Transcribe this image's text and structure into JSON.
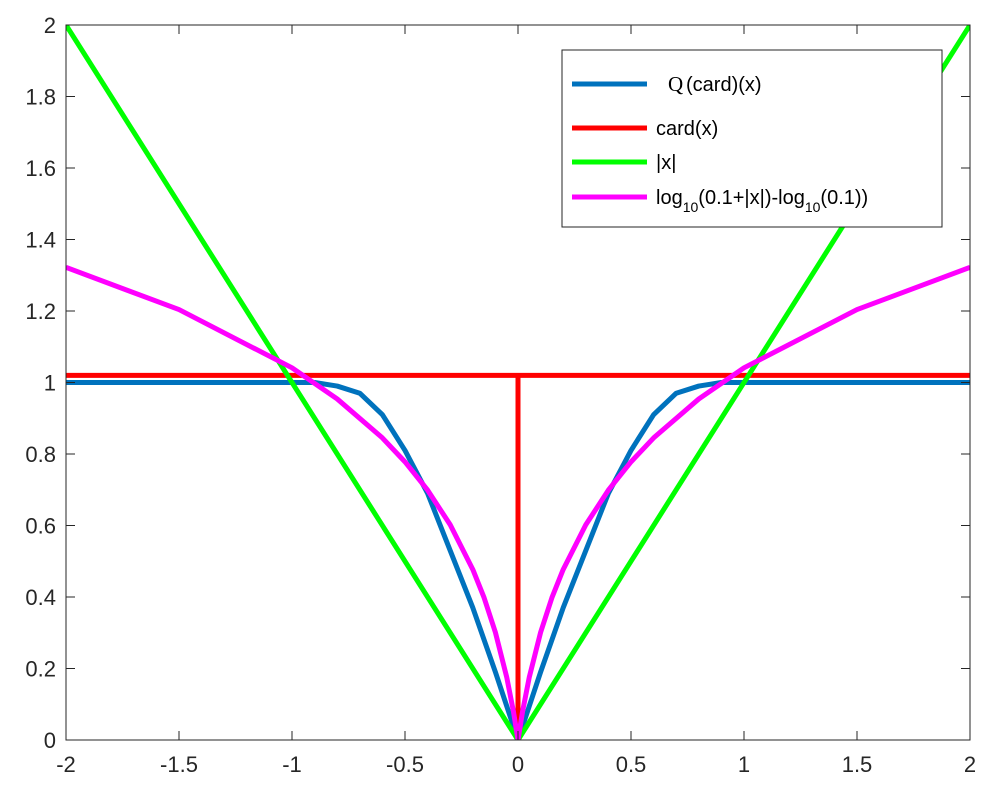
{
  "chart_data": {
    "type": "line",
    "title": "",
    "xlabel": "",
    "ylabel": "",
    "xlim": [
      -2,
      2
    ],
    "ylim": [
      0,
      2
    ],
    "xticks": [
      -2,
      -1.5,
      -1,
      -0.5,
      0,
      0.5,
      1,
      1.5,
      2
    ],
    "xtick_labels": [
      "-2",
      "-1.5",
      "-1",
      "-0.5",
      "0",
      "0.5",
      "1",
      "1.5",
      "2"
    ],
    "yticks": [
      0,
      0.2,
      0.4,
      0.6,
      0.8,
      1,
      1.2,
      1.4,
      1.6,
      1.8,
      2
    ],
    "ytick_labels": [
      "0",
      "0.2",
      "0.4",
      "0.6",
      "0.8",
      "1",
      "1.2",
      "1.4",
      "1.6",
      "1.8",
      "2"
    ],
    "grid": false,
    "legend_position": "top-right",
    "series": [
      {
        "name": "Q(card)(x)",
        "color": "#0072BD",
        "x": [
          -2,
          -1.5,
          -1,
          -0.9,
          -0.8,
          -0.7,
          -0.6,
          -0.5,
          -0.4,
          -0.3,
          -0.2,
          -0.1,
          0,
          0.1,
          0.2,
          0.3,
          0.4,
          0.5,
          0.6,
          0.7,
          0.8,
          0.9,
          1,
          1.5,
          2
        ],
        "y": [
          1,
          1,
          1,
          1,
          0.99,
          0.97,
          0.91,
          0.81,
          0.69,
          0.53,
          0.37,
          0.19,
          0,
          0.19,
          0.37,
          0.53,
          0.69,
          0.81,
          0.91,
          0.97,
          0.99,
          1,
          1,
          1,
          1
        ]
      },
      {
        "name": "card(x)",
        "color": "#FF0000",
        "x": [
          -2,
          0,
          0,
          0,
          2
        ],
        "y": [
          1.02,
          1.02,
          0,
          1.02,
          1.02
        ]
      },
      {
        "name": "|x|",
        "color": "#00FF00",
        "x": [
          -2,
          0,
          2
        ],
        "y": [
          2,
          0,
          2
        ]
      },
      {
        "name": "log10(0.1+|x|)-log10(0.1))",
        "color": "#FF00FF",
        "x": [
          -2,
          -1.5,
          -1,
          -0.8,
          -0.6,
          -0.5,
          -0.4,
          -0.3,
          -0.2,
          -0.15,
          -0.1,
          -0.05,
          -0.02,
          0,
          0.02,
          0.05,
          0.1,
          0.15,
          0.2,
          0.3,
          0.4,
          0.5,
          0.6,
          0.8,
          1,
          1.5,
          2
        ],
        "y": [
          1.322,
          1.204,
          1.041,
          0.954,
          0.845,
          0.778,
          0.699,
          0.602,
          0.477,
          0.398,
          0.301,
          0.176,
          0.079,
          0,
          0.079,
          0.176,
          0.301,
          0.398,
          0.477,
          0.602,
          0.699,
          0.778,
          0.845,
          0.954,
          1.041,
          1.204,
          1.322
        ]
      }
    ],
    "legend_entries": [
      {
        "q": "Q",
        "text": "(card)(x)",
        "color": "#0072BD"
      },
      {
        "text": "card(x)",
        "color": "#FF0000"
      },
      {
        "text": "|x|",
        "color": "#00FF00"
      },
      {
        "parts": [
          "log",
          "10",
          "(0.1+|x|)-log",
          "10",
          "(0.1))"
        ],
        "color": "#FF00FF"
      }
    ]
  }
}
